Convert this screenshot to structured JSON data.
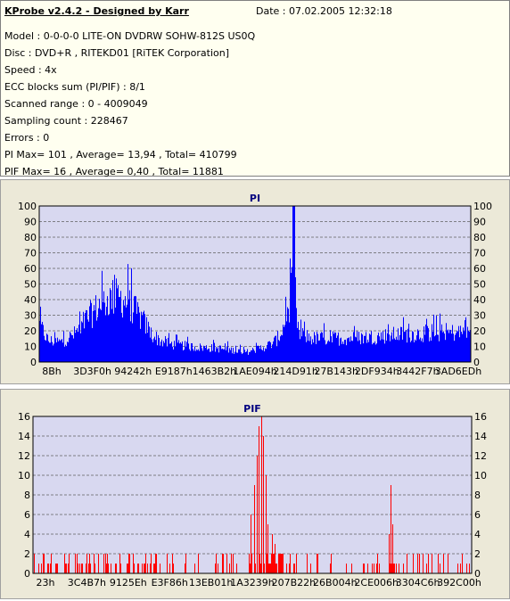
{
  "header": {
    "title": "KProbe v2.4.2 - Designed by Karr",
    "date": "Date : 07.02.2005 12:32:18"
  },
  "info_lines": [
    "Model : 0-0-0-0 LITE-ON DVDRW SOHW-812S  US0Q",
    "Disc : DVD+R , RITEKD01 [RiTEK Corporation]",
    "Speed : 4x",
    "ECC blocks sum (PI/PIF) : 8/1",
    "Scanned range : 0 - 4009049",
    "Sampling count : 228467",
    "Errors : 0",
    "PI Max= 101 , Average= 13,94 , Total= 410799",
    "PIF Max= 16 , Average= 0,40 , Total= 11881"
  ],
  "colors": {
    "plot_bg": "#d8d8f0",
    "pi_bar": "#0000ff",
    "pif_bar": "#ff0000",
    "title": "#000080",
    "grid": "#606060"
  },
  "chart_data": [
    {
      "type": "bar",
      "title": "PI",
      "ylim": [
        0,
        100
      ],
      "yticks": [
        0,
        10,
        20,
        30,
        40,
        50,
        60,
        70,
        80,
        90,
        100
      ],
      "xtick_labels": [
        "8Bh",
        "3D3F0h",
        "94242h",
        "E9187h",
        "1463B2h",
        "1AE094h",
        "214D91h",
        "27B143h",
        "2DF934h",
        "3442F7h",
        "3AD6EDh"
      ],
      "grid": true,
      "envelope": [
        [
          0,
          30
        ],
        [
          0.02,
          17
        ],
        [
          0.05,
          16
        ],
        [
          0.08,
          22
        ],
        [
          0.11,
          35
        ],
        [
          0.14,
          46
        ],
        [
          0.17,
          52
        ],
        [
          0.19,
          51
        ],
        [
          0.21,
          46
        ],
        [
          0.24,
          33
        ],
        [
          0.26,
          22
        ],
        [
          0.28,
          17
        ],
        [
          0.31,
          14
        ],
        [
          0.36,
          12
        ],
        [
          0.41,
          11
        ],
        [
          0.46,
          9
        ],
        [
          0.48,
          8
        ],
        [
          0.5,
          10
        ],
        [
          0.52,
          12
        ],
        [
          0.54,
          15
        ],
        [
          0.55,
          18
        ],
        [
          0.56,
          24
        ],
        [
          0.57,
          33
        ],
        [
          0.58,
          48
        ],
        [
          0.585,
          70
        ],
        [
          0.59,
          101
        ],
        [
          0.595,
          35
        ],
        [
          0.6,
          23
        ],
        [
          0.63,
          19
        ],
        [
          0.7,
          19
        ],
        [
          0.77,
          20
        ],
        [
          0.83,
          22
        ],
        [
          0.9,
          23
        ],
        [
          1,
          24
        ]
      ]
    },
    {
      "type": "bar",
      "title": "PIF",
      "ylim": [
        0,
        16
      ],
      "yticks": [
        0,
        2,
        4,
        6,
        8,
        10,
        12,
        14,
        16
      ],
      "xtick_labels": [
        "23h",
        "3C4B7h",
        "9125Eh",
        "E3F86h",
        "13EB01h",
        "1A3239h",
        "207B22h",
        "26B004h",
        "2CE006h",
        "3304C6h",
        "392C00h"
      ],
      "grid": true,
      "spikes": [
        [
          0.505,
          9
        ],
        [
          0.51,
          12
        ],
        [
          0.515,
          15
        ],
        [
          0.52,
          16
        ],
        [
          0.525,
          14
        ],
        [
          0.53,
          10
        ],
        [
          0.535,
          5
        ],
        [
          0.495,
          6
        ],
        [
          0.545,
          4
        ],
        [
          0.55,
          3
        ],
        [
          0.565,
          2
        ],
        [
          0.81,
          4
        ],
        [
          0.815,
          9
        ],
        [
          0.82,
          5
        ]
      ]
    }
  ]
}
